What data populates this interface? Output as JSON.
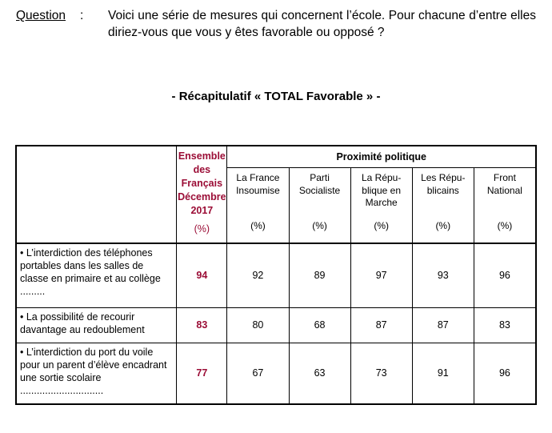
{
  "question": {
    "label": "Question",
    "colon": ":",
    "text": "Voici une série de mesures qui concernent l’école. Pour chacune d’entre elles diriez-vous que vous y êtes favorable ou opposé ?"
  },
  "recap_title": "- Récapitulatif « TOTAL Favorable » -",
  "table": {
    "ensemble_header": [
      "Ensemble",
      "des",
      "Français",
      "Décembre",
      "2017"
    ],
    "ensemble_pct": "(%)",
    "proximite_title": "Proximité politique",
    "parties": [
      {
        "lines": [
          "La France",
          "Insoumise"
        ],
        "pct": "(%)"
      },
      {
        "lines": [
          "Parti",
          "Socialiste"
        ],
        "pct": "(%)"
      },
      {
        "lines": [
          "La Répu-",
          "blique en",
          "Marche"
        ],
        "pct": "(%)"
      },
      {
        "lines": [
          "Les Répu-",
          "blicains"
        ],
        "pct": "(%)"
      },
      {
        "lines": [
          "Front",
          "National"
        ],
        "pct": "(%)"
      }
    ],
    "rows": [
      {
        "label": "• L’interdiction des téléphones portables dans les salles de classe en primaire et au collège .........",
        "ensemble": "94",
        "values": [
          "92",
          "89",
          "97",
          "93",
          "96"
        ]
      },
      {
        "label": "• La possibilité de recourir davantage au redoublement",
        "ensemble": "83",
        "values": [
          "80",
          "68",
          "87",
          "87",
          "83"
        ]
      },
      {
        "label": "• L’interdiction du port du voile pour un parent d’élève encadrant une sortie scolaire ..............................",
        "ensemble": "77",
        "values": [
          "67",
          "63",
          "73",
          "91",
          "96"
        ]
      }
    ]
  },
  "colors": {
    "accent": "#9b0d36"
  }
}
